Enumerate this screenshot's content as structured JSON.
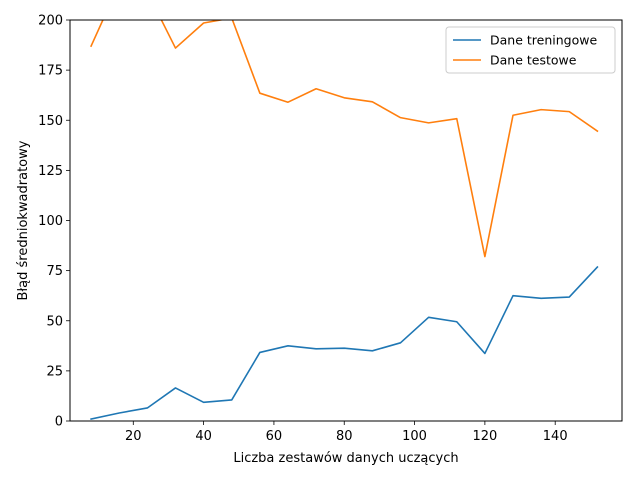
{
  "chart_data": {
    "type": "line",
    "title": "",
    "xlabel": "Liczba zestawów danych uczących",
    "ylabel": "Błąd średniokwadratowy",
    "xlim": [
      2,
      159
    ],
    "ylim": [
      0,
      200
    ],
    "xticks": [
      20,
      40,
      60,
      80,
      100,
      120,
      140
    ],
    "yticks": [
      0,
      25,
      50,
      75,
      100,
      125,
      150,
      175,
      200
    ],
    "grid": false,
    "legend_position": "top-right",
    "x": [
      8,
      16,
      24,
      32,
      40,
      48,
      56,
      64,
      72,
      80,
      88,
      96,
      104,
      112,
      120,
      128,
      136,
      144,
      152
    ],
    "series": [
      {
        "name": "Dane treningowe",
        "color": "#1f77b4",
        "values": [
          1,
          4,
          6.5,
          16.5,
          9.3,
          10.5,
          34.2,
          37.5,
          36,
          36.3,
          35,
          39,
          51.7,
          49.5,
          33.7,
          62.5,
          61.2,
          61.8,
          76.8
        ]
      },
      {
        "name": "Dane testowe",
        "color": "#ff7f0e",
        "values": [
          187,
          218,
          214,
          186,
          198.5,
          201,
          163.5,
          159,
          165.7,
          161.2,
          159.2,
          151.3,
          148.7,
          150.8,
          82,
          152.5,
          155.3,
          154.3,
          144.6
        ]
      }
    ]
  }
}
